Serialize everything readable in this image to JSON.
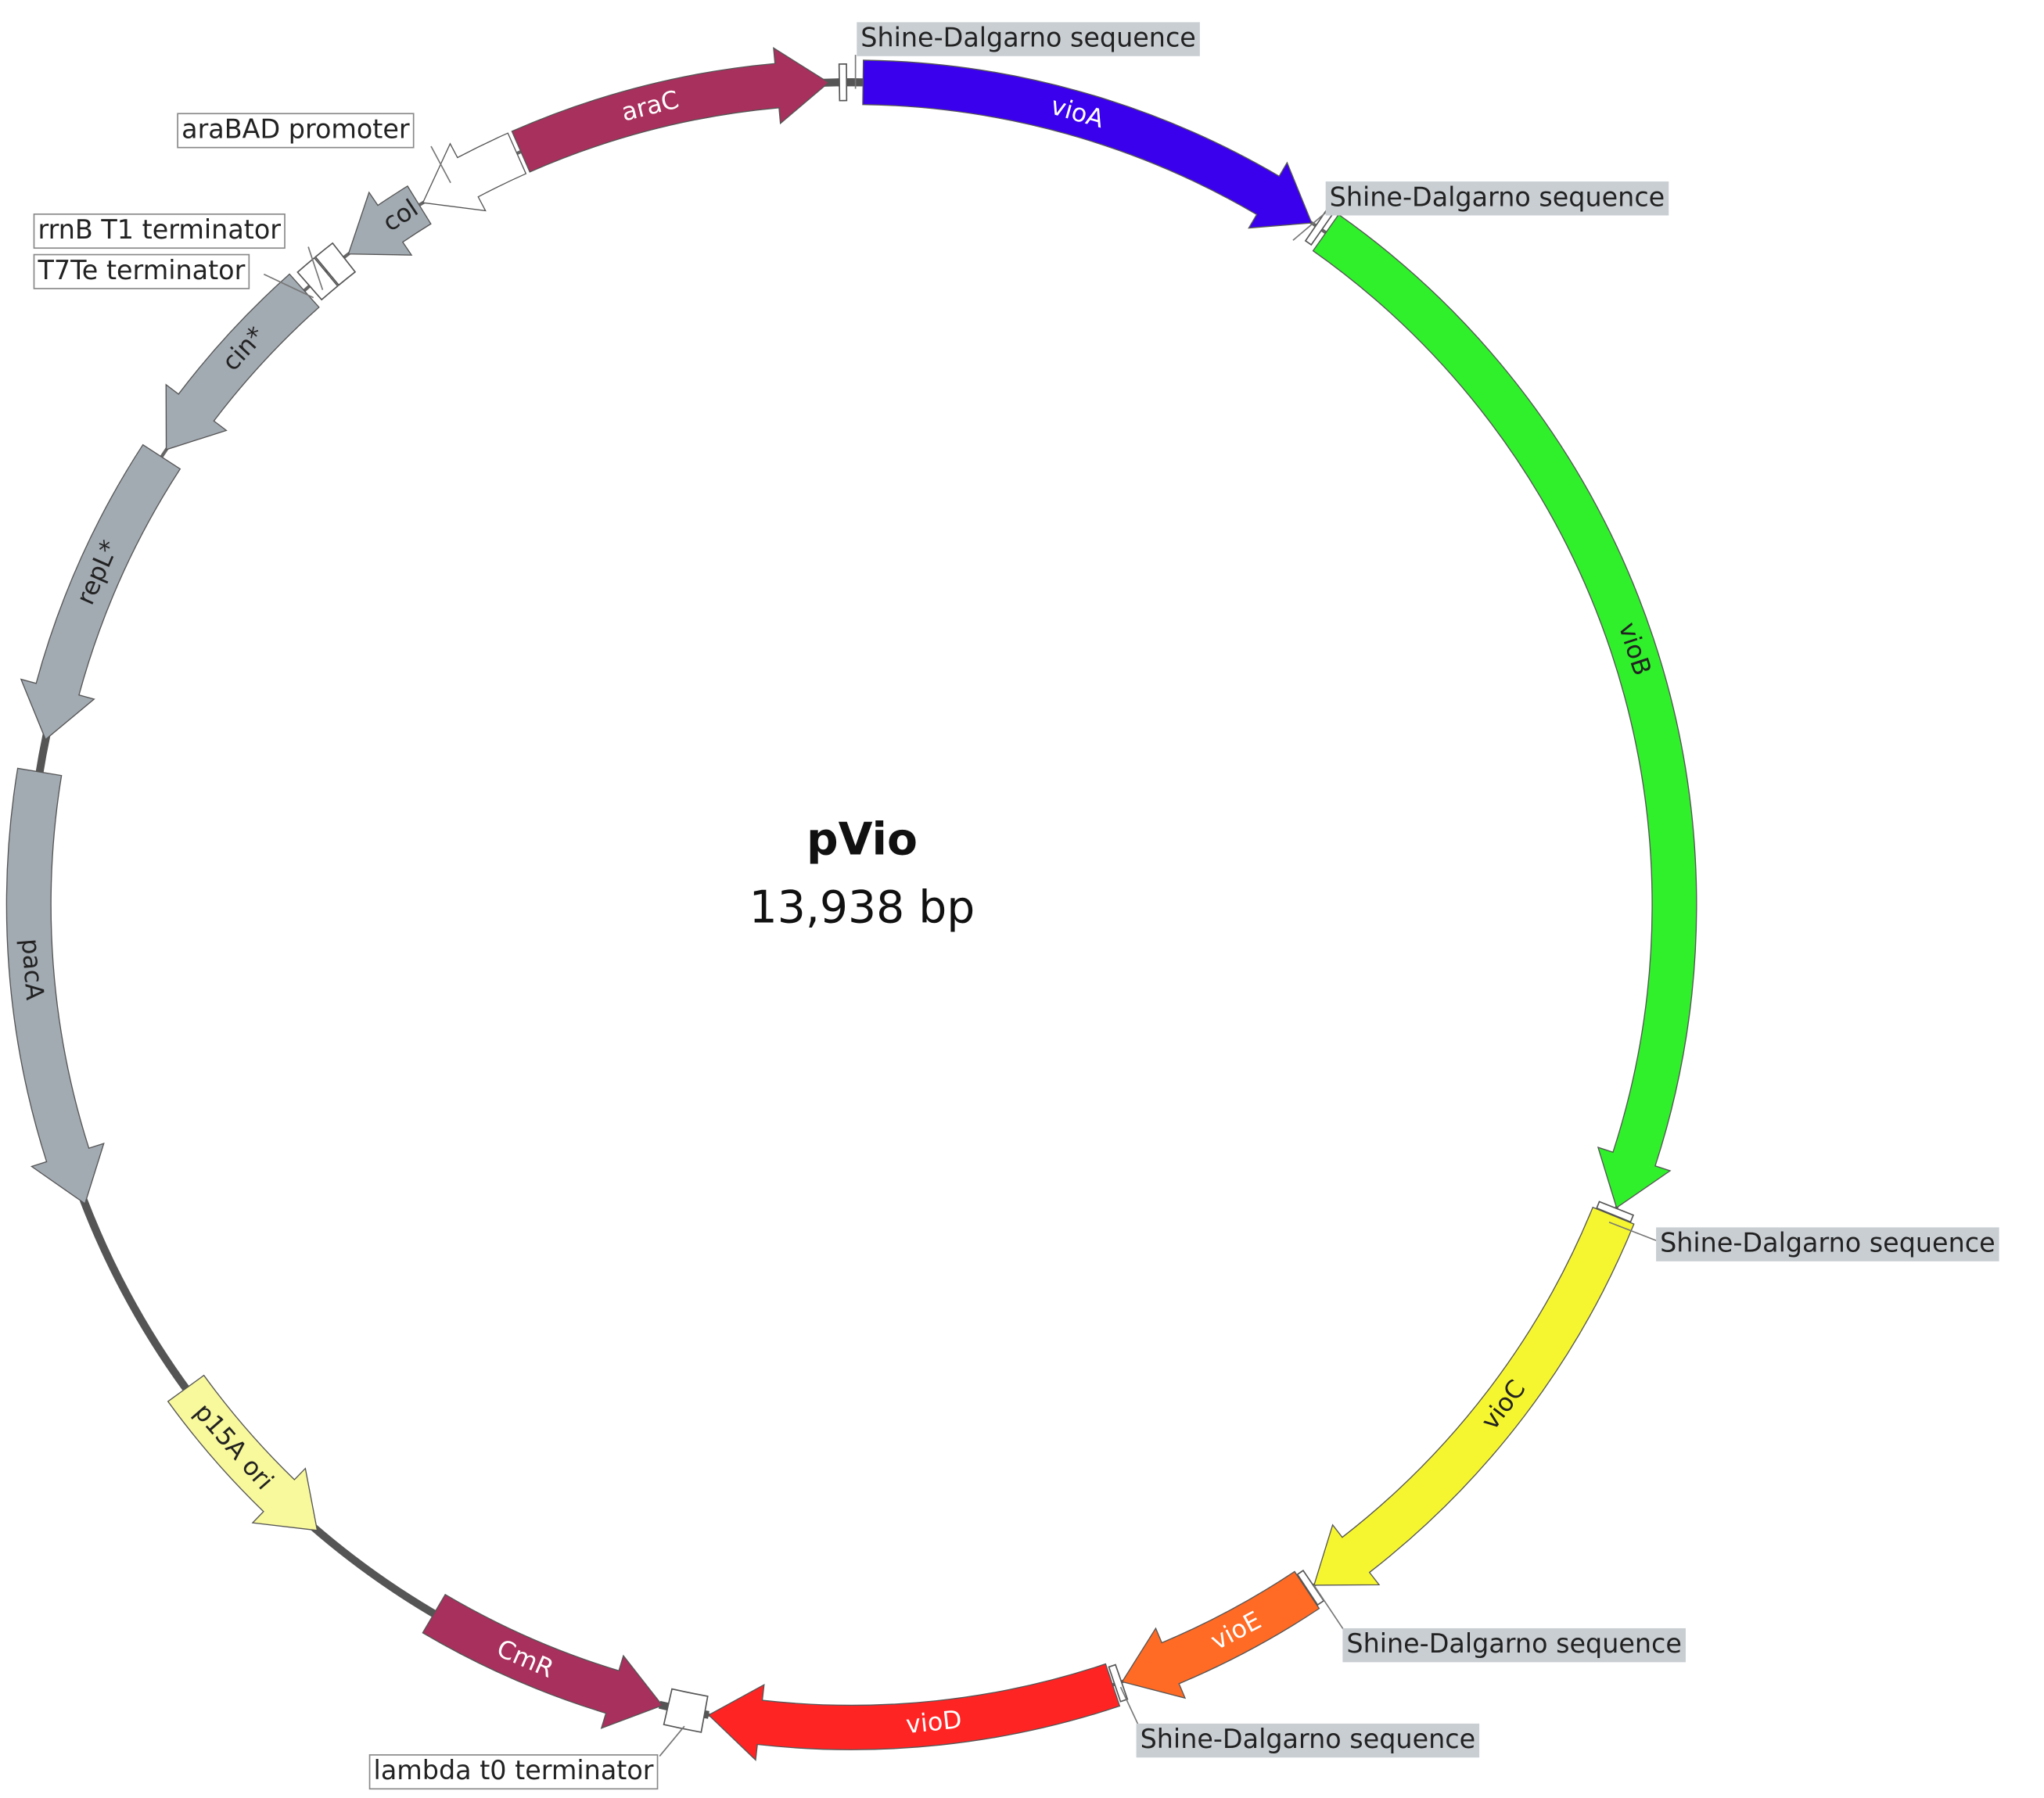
{
  "title": "pVio",
  "length": "13,938 bp",
  "features": [
    {
      "label": "vioA",
      "color": "#3a00ee",
      "label_color": "#ffffff"
    },
    {
      "label": "vioB",
      "color": "#2ff02a",
      "label_color": "#222222"
    },
    {
      "label": "vioC",
      "color": "#f6f630",
      "label_color": "#222222"
    },
    {
      "label": "vioE",
      "color": "#ff6a24",
      "label_color": "#ffffff"
    },
    {
      "label": "vioD",
      "color": "#ff2424",
      "label_color": "#ffffff"
    },
    {
      "label": "CmR",
      "color": "#a8305c",
      "label_color": "#ffffff"
    },
    {
      "label": "p15A ori",
      "color": "#f8f89c",
      "label_color": "#222222"
    },
    {
      "label": "pacA",
      "color": "#a2aab2",
      "label_color": "#222222"
    },
    {
      "label": "repL*",
      "color": "#a2aab2",
      "label_color": "#222222"
    },
    {
      "label": "cin*",
      "color": "#a2aab2",
      "label_color": "#222222"
    },
    {
      "label": "col",
      "color": "#a2aab2",
      "label_color": "#222222"
    },
    {
      "label": "araC",
      "color": "#a8305c",
      "label_color": "#ffffff"
    }
  ],
  "annotations": [
    {
      "label": "Shine-Dalgarno sequence"
    },
    {
      "label": "Shine-Dalgarno sequence"
    },
    {
      "label": "Shine-Dalgarno sequence"
    },
    {
      "label": "Shine-Dalgarno sequence"
    },
    {
      "label": "Shine-Dalgarno sequence"
    },
    {
      "label": "lambda t0 terminator"
    },
    {
      "label": "araBAD promoter"
    },
    {
      "label": "rrnB T1 terminator"
    },
    {
      "label": "T7Te terminator"
    }
  ]
}
